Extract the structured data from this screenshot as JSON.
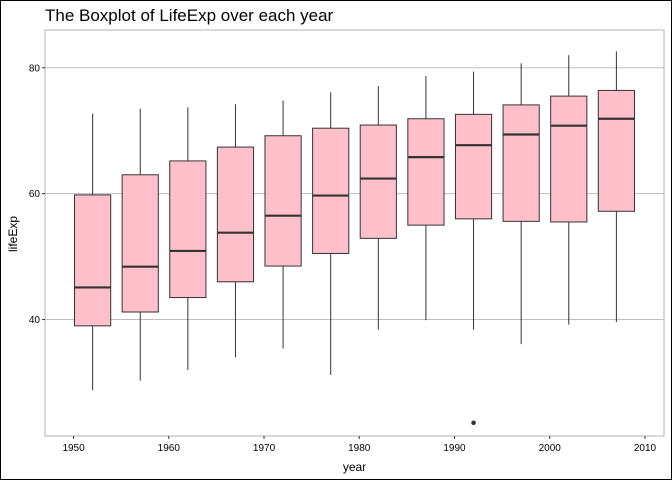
{
  "chart_data": {
    "type": "boxplot",
    "title": "The Boxplot of LifeExp over each year",
    "xlabel": "year",
    "ylabel": "lifeExp",
    "xlim": [
      1947,
      2012
    ],
    "ylim": [
      21.5,
      86
    ],
    "x_ticks": [
      1950,
      1960,
      1970,
      1980,
      1990,
      2000,
      2010
    ],
    "y_ticks": [
      40,
      60,
      80
    ],
    "grid": {
      "horizontal_major": true,
      "vertical": false
    },
    "box_width_years": 3.8,
    "colors": {
      "box_fill": "#ffc0cb",
      "box_stroke": "#333333",
      "grid": "#bdbdbd",
      "panel_border": "#b3b3b3"
    },
    "boxes": [
      {
        "year": 1952,
        "whisker_low": 28.8,
        "q1": 39.0,
        "median": 45.1,
        "q3": 59.8,
        "whisker_high": 72.7
      },
      {
        "year": 1957,
        "whisker_low": 30.3,
        "q1": 41.2,
        "median": 48.4,
        "q3": 63.0,
        "whisker_high": 73.5
      },
      {
        "year": 1962,
        "whisker_low": 32.0,
        "q1": 43.5,
        "median": 50.9,
        "q3": 65.2,
        "whisker_high": 73.7
      },
      {
        "year": 1967,
        "whisker_low": 34.0,
        "q1": 46.0,
        "median": 53.8,
        "q3": 67.4,
        "whisker_high": 74.2
      },
      {
        "year": 1972,
        "whisker_low": 35.4,
        "q1": 48.5,
        "median": 56.5,
        "q3": 69.2,
        "whisker_high": 74.8
      },
      {
        "year": 1977,
        "whisker_low": 31.2,
        "q1": 50.5,
        "median": 59.7,
        "q3": 70.4,
        "whisker_high": 76.1
      },
      {
        "year": 1982,
        "whisker_low": 38.4,
        "q1": 52.9,
        "median": 62.4,
        "q3": 70.9,
        "whisker_high": 77.1
      },
      {
        "year": 1987,
        "whisker_low": 39.9,
        "q1": 55.0,
        "median": 65.8,
        "q3": 71.9,
        "whisker_high": 78.7
      },
      {
        "year": 1992,
        "whisker_low": 38.4,
        "q1": 56.0,
        "median": 67.7,
        "q3": 72.6,
        "whisker_high": 79.4,
        "outliers": [
          23.6
        ]
      },
      {
        "year": 1997,
        "whisker_low": 36.1,
        "q1": 55.6,
        "median": 69.4,
        "q3": 74.1,
        "whisker_high": 80.7
      },
      {
        "year": 2002,
        "whisker_low": 39.2,
        "q1": 55.5,
        "median": 70.8,
        "q3": 75.5,
        "whisker_high": 82.0
      },
      {
        "year": 2007,
        "whisker_low": 39.6,
        "q1": 57.2,
        "median": 71.9,
        "q3": 76.4,
        "whisker_high": 82.6
      }
    ]
  }
}
